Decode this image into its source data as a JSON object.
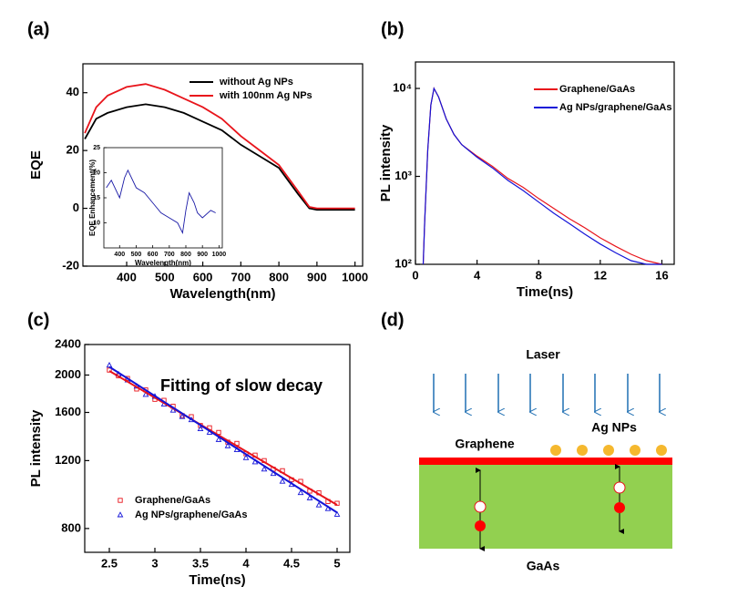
{
  "chart_data": [
    {
      "type": "line",
      "panel_label": "(a)",
      "xlabel": "Wavelength(nm)",
      "ylabel": "EQE",
      "xlim": [
        285,
        1020
      ],
      "ylim": [
        -20,
        50
      ],
      "xticks": [
        400,
        500,
        600,
        700,
        800,
        900,
        1000
      ],
      "yticks": [
        -20,
        0,
        20,
        40
      ],
      "legend": "upper right",
      "x": [
        290,
        320,
        350,
        400,
        450,
        500,
        550,
        600,
        650,
        700,
        750,
        800,
        850,
        880,
        900,
        950,
        1000
      ],
      "series": [
        {
          "name": "without Ag NPs",
          "color": "#000000",
          "values": [
            24,
            31,
            33,
            35,
            36,
            35,
            33,
            30,
            27,
            22,
            18,
            14,
            5,
            0,
            -0.5,
            -0.5,
            -0.5
          ]
        },
        {
          "name": "with 100nm Ag NPs",
          "color": "#e8141b",
          "values": [
            26,
            35,
            39,
            42,
            43,
            41,
            38,
            35,
            31,
            25,
            20,
            15,
            6,
            0.5,
            0,
            0,
            0
          ]
        }
      ],
      "inset": {
        "type": "line",
        "xlabel": "Wavelength(nm)",
        "ylabel": "EQE Enhancement(%)",
        "xlim": [
          305,
          1020
        ],
        "ylim": [
          5,
          25
        ],
        "xticks": [
          400,
          500,
          600,
          700,
          800,
          900,
          1000
        ],
        "yticks": [
          10,
          15,
          20,
          25
        ],
        "x": [
          320,
          350,
          400,
          430,
          450,
          500,
          550,
          600,
          650,
          700,
          750,
          780,
          800,
          820,
          850,
          870,
          900,
          950,
          980
        ],
        "series": [
          {
            "color": "#1a1aa6",
            "values": [
              17,
              18.5,
              15,
              19,
              20.5,
              17,
              16,
              14,
              12,
              11,
              10,
              8,
              12.5,
              16,
              14,
              12,
              11,
              12.5,
              12
            ]
          }
        ]
      }
    },
    {
      "type": "line",
      "panel_label": "(b)",
      "xlabel": "Time(ns)",
      "ylabel": "PL intensity",
      "yscale": "log",
      "xlim": [
        0,
        16.8
      ],
      "ylim": [
        100,
        20000
      ],
      "xticks": [
        0,
        4,
        8,
        12,
        16
      ],
      "yticks": [
        {
          "value": 100,
          "label": "10²"
        },
        {
          "value": 1000,
          "label": "10³"
        },
        {
          "value": 10000,
          "label": "10⁴"
        }
      ],
      "legend": "upper right",
      "x": [
        0.5,
        0.6,
        0.8,
        1.0,
        1.2,
        1.5,
        2,
        2.5,
        3,
        4,
        5,
        6,
        7,
        8,
        9,
        10,
        11,
        12,
        13,
        14,
        15,
        16
      ],
      "series": [
        {
          "name": "Graphene/GaAs",
          "color": "#e8141b",
          "values": [
            100,
            300,
            2000,
            6500,
            10000,
            8000,
            4500,
            3000,
            2300,
            1700,
            1300,
            950,
            750,
            560,
            430,
            330,
            260,
            200,
            160,
            130,
            110,
            100
          ]
        },
        {
          "name": "Ag NPs/graphene/GaAs",
          "color": "#1414d8",
          "values": [
            100,
            300,
            2000,
            6500,
            10000,
            8000,
            4500,
            3000,
            2300,
            1650,
            1250,
            900,
            690,
            510,
            380,
            290,
            220,
            170,
            135,
            110,
            100,
            100
          ]
        }
      ]
    },
    {
      "type": "scatter",
      "panel_label": "(c)",
      "xlabel": "Time(ns)",
      "ylabel": "PL intensity",
      "yscale": "log",
      "annotation": "Fitting of slow decay",
      "xlim": [
        2.23,
        5.14
      ],
      "ylim": [
        694,
        2400
      ],
      "xticks": [
        2.5,
        3.0,
        3.5,
        4.0,
        4.5,
        5.0
      ],
      "yticks": [
        800,
        1200,
        1600,
        2000,
        2400
      ],
      "legend": "lower left",
      "x": [
        2.5,
        2.6,
        2.7,
        2.8,
        2.9,
        3.0,
        3.1,
        3.2,
        3.3,
        3.4,
        3.5,
        3.6,
        3.7,
        3.8,
        3.9,
        4.0,
        4.1,
        4.2,
        4.3,
        4.4,
        4.5,
        4.6,
        4.7,
        4.8,
        4.9,
        5.0
      ],
      "series": [
        {
          "name": "Graphene/GaAs",
          "color": "#e8141b",
          "marker": "square",
          "values": [
            2060,
            1990,
            1960,
            1840,
            1830,
            1730,
            1720,
            1660,
            1570,
            1560,
            1480,
            1460,
            1420,
            1340,
            1330,
            1250,
            1240,
            1200,
            1140,
            1130,
            1070,
            1060,
            1000,
            990,
            940,
            930
          ]
        },
        {
          "name": "Ag NPs/graphene/GaAs",
          "color": "#1414d8",
          "marker": "triangle",
          "values": [
            2120,
            2010,
            1940,
            1870,
            1780,
            1760,
            1680,
            1620,
            1560,
            1530,
            1450,
            1420,
            1360,
            1310,
            1280,
            1220,
            1190,
            1140,
            1110,
            1060,
            1040,
            990,
            960,
            920,
            900,
            870
          ]
        }
      ],
      "fits": [
        {
          "color": "#e8141b",
          "x": [
            2.5,
            5.0
          ],
          "values": [
            2050,
            921
          ]
        },
        {
          "color": "#1414d8",
          "x": [
            2.5,
            5.0
          ],
          "values": [
            2100,
            880
          ]
        }
      ]
    }
  ],
  "diagram": {
    "panel_label": "(d)",
    "laser": "Laser",
    "graphene": "Graphene",
    "ag_nps": "Ag NPs",
    "gaas": "GaAs"
  }
}
